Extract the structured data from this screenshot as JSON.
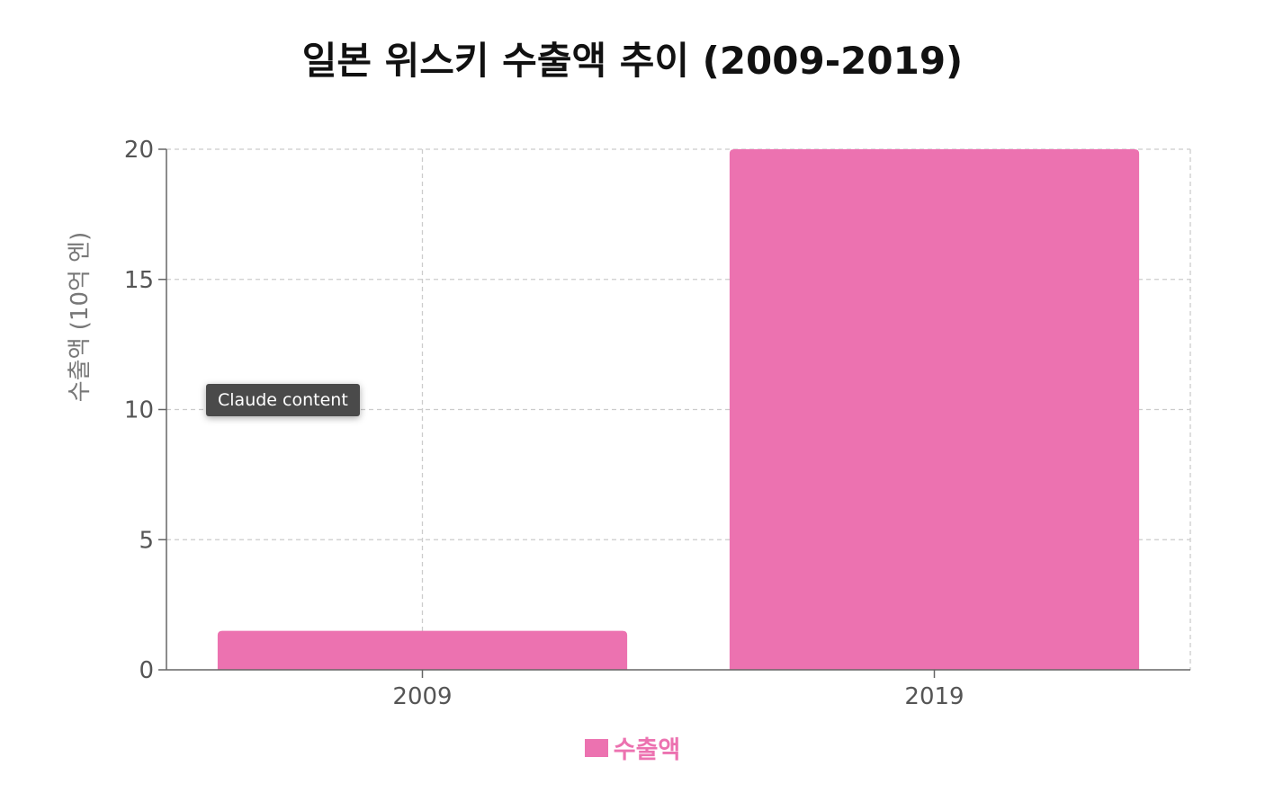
{
  "chart_data": {
    "type": "bar",
    "title": "일본 위스키 수출액 추이 (2009-2019)",
    "xlabel": "",
    "ylabel": "수출액 (10억 엔)",
    "categories": [
      "2009",
      "2019"
    ],
    "series": [
      {
        "name": "수출액",
        "values": [
          1.5,
          20
        ]
      }
    ],
    "ylim": [
      0,
      20
    ],
    "yticks": [
      0,
      5,
      10,
      15,
      20
    ],
    "grid": true,
    "legend_position": "bottom",
    "bar_color": "#EC72B0"
  },
  "tooltip": {
    "text": "Claude content"
  }
}
